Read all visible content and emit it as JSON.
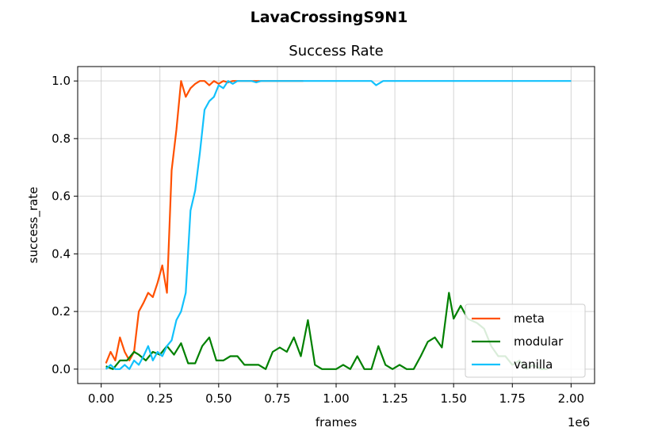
{
  "chart_data": {
    "type": "line",
    "suptitle": "LavaCrossingS9N1",
    "title": "Success Rate",
    "xlabel": "frames",
    "ylabel": "success_rate",
    "x_offset_label": "1e6",
    "xlim": [
      -0.1,
      2.1
    ],
    "ylim": [
      -0.05,
      1.05
    ],
    "xticks": [
      0,
      0.25,
      0.5,
      0.75,
      1.0,
      1.25,
      1.5,
      1.75,
      2.0
    ],
    "xtick_labels": [
      "0.00",
      "0.25",
      "0.50",
      "0.75",
      "1.00",
      "1.25",
      "1.50",
      "1.75",
      "2.00"
    ],
    "yticks": [
      0,
      0.2,
      0.4,
      0.6,
      0.8,
      1.0
    ],
    "ytick_labels": [
      "0.0",
      "0.2",
      "0.4",
      "0.6",
      "0.8",
      "1.0"
    ],
    "grid": true,
    "legend_position": "lower-right",
    "series": [
      {
        "name": "meta",
        "color": "#ff5000",
        "x": [
          0.02,
          0.04,
          0.06,
          0.08,
          0.1,
          0.12,
          0.14,
          0.16,
          0.18,
          0.2,
          0.22,
          0.24,
          0.26,
          0.28,
          0.3,
          0.32,
          0.34,
          0.36,
          0.38,
          0.4,
          0.42,
          0.44,
          0.46,
          0.48,
          0.5,
          0.52,
          0.54,
          0.56,
          0.58,
          0.6,
          0.62,
          0.64,
          0.66,
          0.68,
          0.7,
          0.72,
          0.74,
          0.76,
          0.78,
          0.8,
          0.82,
          0.84,
          0.86
        ],
        "y": [
          0.02,
          0.06,
          0.03,
          0.11,
          0.06,
          0.03,
          0.06,
          0.2,
          0.23,
          0.265,
          0.25,
          0.3,
          0.36,
          0.265,
          0.69,
          0.83,
          1.0,
          0.945,
          0.975,
          0.99,
          1.0,
          1.0,
          0.985,
          1.0,
          0.99,
          1.0,
          0.995,
          1.0,
          1.0,
          1.0,
          1.0,
          1.0,
          1.0,
          1.0,
          1.0,
          1.0,
          1.0,
          1.0,
          1.0,
          1.0,
          1.0,
          1.0,
          1.0
        ]
      },
      {
        "name": "modular",
        "color": "#008000",
        "x": [
          0.02,
          0.05,
          0.08,
          0.11,
          0.14,
          0.16,
          0.19,
          0.22,
          0.25,
          0.28,
          0.31,
          0.34,
          0.37,
          0.4,
          0.43,
          0.46,
          0.49,
          0.52,
          0.55,
          0.58,
          0.61,
          0.64,
          0.67,
          0.7,
          0.73,
          0.76,
          0.79,
          0.82,
          0.85,
          0.88,
          0.91,
          0.94,
          0.97,
          1.0,
          1.03,
          1.06,
          1.09,
          1.12,
          1.15,
          1.18,
          1.21,
          1.24,
          1.27,
          1.3,
          1.33,
          1.36,
          1.39,
          1.42,
          1.45,
          1.48,
          1.5,
          1.53,
          1.56,
          1.6,
          1.63,
          1.66,
          1.69,
          1.72,
          1.75,
          1.78,
          1.81,
          1.84,
          1.87,
          1.9
        ],
        "y": [
          0.01,
          0.0,
          0.03,
          0.03,
          0.06,
          0.05,
          0.03,
          0.06,
          0.05,
          0.08,
          0.05,
          0.09,
          0.02,
          0.02,
          0.08,
          0.11,
          0.03,
          0.03,
          0.045,
          0.045,
          0.015,
          0.015,
          0.015,
          0.0,
          0.06,
          0.075,
          0.06,
          0.11,
          0.045,
          0.17,
          0.015,
          0.0,
          0.0,
          0.0,
          0.015,
          0.0,
          0.045,
          0.0,
          0.0,
          0.08,
          0.015,
          0.0,
          0.015,
          0.0,
          0.0,
          0.045,
          0.095,
          0.11,
          0.075,
          0.265,
          0.175,
          0.22,
          0.175,
          0.16,
          0.14,
          0.08,
          0.045,
          0.045,
          0.015,
          0.03,
          0.0,
          0.015,
          0.0,
          0.0
        ]
      },
      {
        "name": "vanilla",
        "color": "#12c1fc",
        "x": [
          0.02,
          0.04,
          0.06,
          0.08,
          0.1,
          0.12,
          0.14,
          0.16,
          0.18,
          0.2,
          0.22,
          0.24,
          0.26,
          0.28,
          0.3,
          0.32,
          0.34,
          0.36,
          0.38,
          0.4,
          0.42,
          0.44,
          0.46,
          0.48,
          0.5,
          0.52,
          0.54,
          0.56,
          0.58,
          0.6,
          0.62,
          0.64,
          0.66,
          0.68,
          0.7,
          0.72,
          0.74,
          0.76,
          0.78,
          0.8,
          0.82,
          0.84,
          0.86,
          0.88,
          0.9,
          0.92,
          0.94,
          0.96,
          0.98,
          1.0,
          1.05,
          1.1,
          1.15,
          1.17,
          1.2,
          1.25,
          1.3,
          1.4,
          1.5,
          1.6,
          1.7,
          1.8,
          1.9,
          2.0
        ],
        "y": [
          0.0,
          0.015,
          0.0,
          0.0,
          0.015,
          0.0,
          0.03,
          0.015,
          0.045,
          0.08,
          0.03,
          0.06,
          0.045,
          0.08,
          0.1,
          0.17,
          0.2,
          0.265,
          0.55,
          0.62,
          0.75,
          0.9,
          0.93,
          0.945,
          0.985,
          0.975,
          1.0,
          0.99,
          1.0,
          1.0,
          1.0,
          1.0,
          0.995,
          1.0,
          1.0,
          1.0,
          1.0,
          1.0,
          1.0,
          1.0,
          1.0,
          1.0,
          1.0,
          1.0,
          1.0,
          1.0,
          1.0,
          1.0,
          1.0,
          1.0,
          1.0,
          1.0,
          1.0,
          0.985,
          1.0,
          1.0,
          1.0,
          1.0,
          1.0,
          1.0,
          1.0,
          1.0,
          1.0,
          1.0
        ]
      }
    ]
  }
}
